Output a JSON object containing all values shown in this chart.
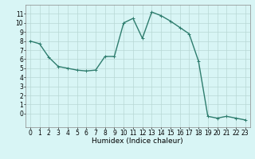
{
  "x": [
    0,
    1,
    2,
    3,
    4,
    5,
    6,
    7,
    8,
    9,
    10,
    11,
    12,
    13,
    14,
    15,
    16,
    17,
    18,
    19,
    20,
    21,
    22,
    23
  ],
  "y": [
    8.0,
    7.7,
    6.2,
    5.2,
    5.0,
    4.8,
    4.7,
    4.8,
    6.3,
    6.3,
    10.0,
    10.5,
    8.3,
    11.2,
    10.8,
    10.2,
    9.5,
    8.8,
    5.8,
    -0.3,
    -0.5,
    -0.3,
    -0.5,
    -0.7
  ],
  "line_color": "#2e7d6e",
  "marker": "+",
  "marker_size": 3,
  "bg_color": "#d8f5f5",
  "grid_color": "#b8d8d4",
  "xlabel": "Humidex (Indice chaleur)",
  "xlim": [
    -0.5,
    23.5
  ],
  "ylim": [
    -1.5,
    12.0
  ],
  "yticks": [
    0,
    1,
    2,
    3,
    4,
    5,
    6,
    7,
    8,
    9,
    10,
    11
  ],
  "xticks": [
    0,
    1,
    2,
    3,
    4,
    5,
    6,
    7,
    8,
    9,
    10,
    11,
    12,
    13,
    14,
    15,
    16,
    17,
    18,
    19,
    20,
    21,
    22,
    23
  ],
  "xlabel_fontsize": 6.5,
  "tick_fontsize": 5.5,
  "linewidth": 1.0,
  "marker_edge_width": 0.7
}
